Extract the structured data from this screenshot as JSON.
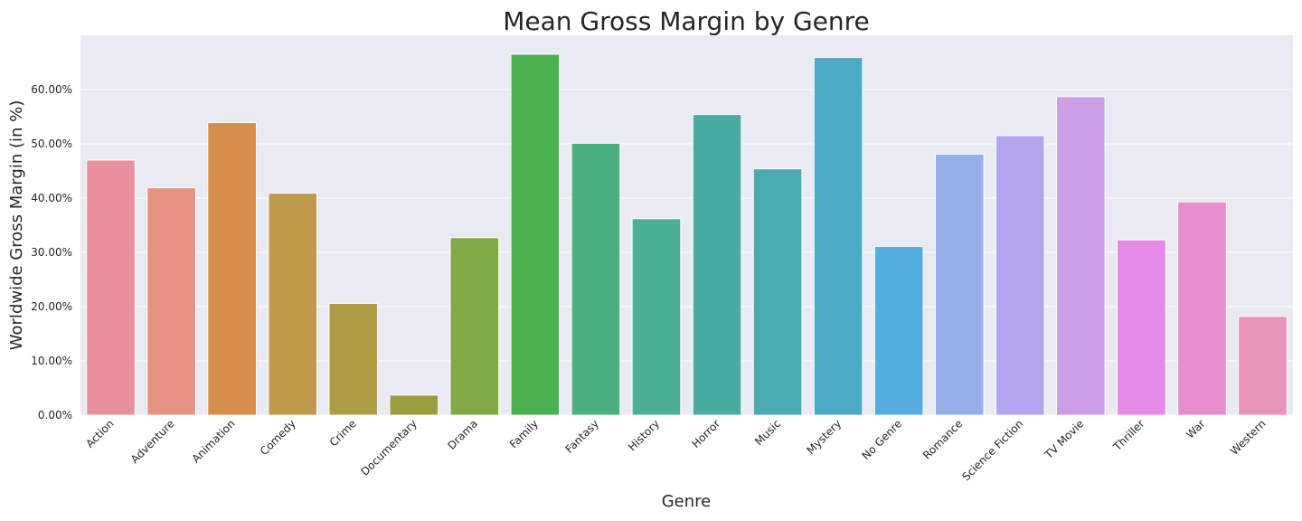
{
  "chart_data": {
    "type": "bar",
    "title": "Mean Gross Margin by Genre",
    "xlabel": "Genre",
    "ylabel": "Worldwide Gross Margin (in %)",
    "ylim": [
      0,
      70
    ],
    "yticks": [
      0,
      10,
      20,
      30,
      40,
      50,
      60
    ],
    "ytick_labels": [
      "0.00%",
      "10.00%",
      "20.00%",
      "30.00%",
      "40.00%",
      "50.00%",
      "60.00%"
    ],
    "grid": true,
    "categories": [
      "Action",
      "Adventure",
      "Animation",
      "Comedy",
      "Crime",
      "Documentary",
      "Drama",
      "Family",
      "Fantasy",
      "History",
      "Horror",
      "Music",
      "Mystery",
      "No Genre",
      "Romance",
      "Science Fiction",
      "TV Movie",
      "Thriller",
      "War",
      "Western"
    ],
    "values": [
      47.0,
      41.9,
      53.9,
      40.9,
      20.6,
      3.7,
      32.7,
      66.5,
      50.1,
      36.2,
      55.4,
      45.4,
      65.9,
      31.1,
      48.1,
      51.5,
      58.7,
      32.3,
      39.3,
      18.2
    ],
    "colors": [
      "#e8919c",
      "#e69481",
      "#d78d4c",
      "#bf9a4a",
      "#ae9d44",
      "#9c9c41",
      "#80a844",
      "#4bb050",
      "#4caf7e",
      "#4baf95",
      "#49aca3",
      "#4aacb1",
      "#4daac4",
      "#55ace0",
      "#94aee8",
      "#b3a4ee",
      "#cd9de8",
      "#e48ae6",
      "#e88dcb",
      "#e893b9"
    ]
  }
}
